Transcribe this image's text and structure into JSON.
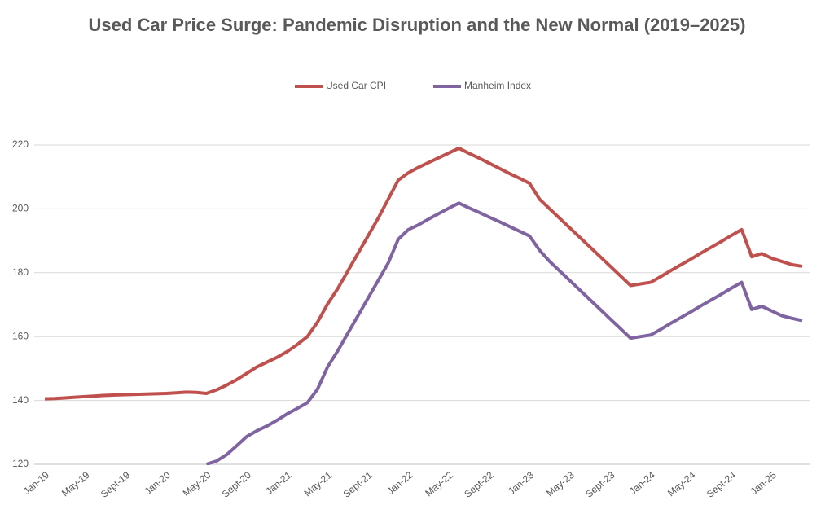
{
  "chart_data": {
    "type": "line",
    "title": "Used Car Price Surge: Pandemic Disruption and the New Normal (2019–2025)",
    "categories": [
      "Jan-19",
      null,
      null,
      null,
      "May-19",
      null,
      null,
      null,
      "Sept-19",
      null,
      null,
      null,
      "Jan-20",
      null,
      null,
      null,
      "May-20",
      null,
      null,
      null,
      "Sept-20",
      null,
      null,
      null,
      "Jan-21",
      null,
      null,
      null,
      "May-21",
      null,
      null,
      null,
      "Sept-21",
      null,
      null,
      null,
      "Jan-22",
      null,
      null,
      null,
      "May-22",
      null,
      null,
      null,
      "Sept-22",
      null,
      null,
      null,
      "Jan-23",
      null,
      null,
      null,
      "May-23",
      null,
      null,
      null,
      "Sept-23",
      null,
      null,
      null,
      "Jan-24",
      null,
      null,
      null,
      "May-24",
      null,
      null,
      null,
      "Sept-24",
      null,
      null,
      null,
      "Jan-25",
      null,
      null,
      null
    ],
    "series": [
      {
        "name": "Used Car CPI",
        "color": "#c0504d",
        "values": [
          140.5,
          140.6,
          140.8,
          141,
          141.2,
          141.4,
          141.6,
          141.7,
          141.8,
          141.9,
          142,
          142.1,
          142.2,
          142.4,
          142.6,
          142.5,
          142.2,
          143.3,
          144.8,
          146.5,
          148.5,
          150.5,
          152,
          153.5,
          155.3,
          157.5,
          160,
          164.5,
          170.2,
          175,
          180.5,
          186,
          191.5,
          197,
          203,
          209,
          211.3,
          213,
          214.5,
          216,
          217.5,
          219,
          217.4,
          215.9,
          214.3,
          212.7,
          211.1,
          209.6,
          208,
          203,
          200,
          197,
          194,
          191,
          188,
          185,
          182,
          179,
          176,
          176.5,
          177,
          178.8,
          180.7,
          182.5,
          184.3,
          186.2,
          188,
          189.8,
          191.7,
          193.5,
          185,
          186,
          184.5,
          183.5,
          182.5,
          182
        ]
      },
      {
        "name": "Manheim Index",
        "color": "#8064a2",
        "values": [
          null,
          null,
          null,
          null,
          null,
          null,
          null,
          null,
          null,
          null,
          null,
          null,
          null,
          null,
          null,
          null,
          120,
          121,
          123,
          125.8,
          128.7,
          130.5,
          132,
          133.8,
          135.8,
          137.5,
          139.3,
          143.5,
          150.5,
          155.5,
          161,
          166.5,
          172,
          177.5,
          183,
          190.5,
          193.5,
          195,
          196.8,
          198.5,
          200.2,
          201.8,
          200.3,
          198.9,
          197.4,
          196,
          194.5,
          193,
          191.5,
          187,
          183.5,
          180.5,
          177.5,
          174.5,
          171.5,
          168.5,
          165.5,
          162.5,
          159.5,
          160,
          160.5,
          162.3,
          164.2,
          166,
          167.8,
          169.7,
          171.5,
          173.3,
          175.2,
          177,
          168.5,
          169.5,
          168,
          166.5,
          165.7,
          165
        ]
      }
    ],
    "ylim": [
      120,
      220
    ],
    "yticks": [
      120,
      140,
      160,
      180,
      200,
      220
    ],
    "grid": true,
    "legend": "top"
  }
}
